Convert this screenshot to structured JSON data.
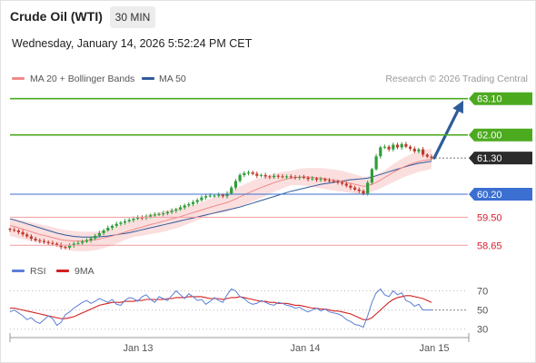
{
  "header": {
    "title": "Crude Oil (WTI)",
    "timeframe": "30 MIN",
    "datetime": "Wednesday, January 14, 2026 5:52:24 PM CET"
  },
  "legend": {
    "items": [
      {
        "label": "MA 20 + Bollinger Bands",
        "color": "#f08a8a"
      },
      {
        "label": "MA 50",
        "color": "#2f5b9a"
      }
    ],
    "credit": "Research © 2026 Trading Central"
  },
  "rsi_legend": {
    "items": [
      {
        "label": "RSI",
        "color": "#5b7fd6"
      },
      {
        "label": "9MA",
        "color": "#d42020"
      }
    ]
  },
  "levels": [
    {
      "value": 63.1,
      "label": "63.10",
      "style": "green-badge"
    },
    {
      "value": 62.0,
      "label": "62.00",
      "style": "green-badge"
    },
    {
      "value": 61.3,
      "label": "61.30",
      "style": "current-badge"
    },
    {
      "value": 60.2,
      "label": "60.20",
      "style": "blue-badge"
    },
    {
      "value": 59.5,
      "label": "59.50",
      "style": "red-text"
    },
    {
      "value": 58.65,
      "label": "58.65",
      "style": "red-text"
    }
  ],
  "x_axis": {
    "labels": [
      "Jan 13",
      "Jan 14",
      "Jan 15"
    ]
  },
  "rsi_axis": {
    "labels": [
      "70",
      "50",
      "30"
    ]
  },
  "chart_data": {
    "type": "line",
    "main_series": [
      {
        "name": "Price (30 min close)",
        "values": [
          59.12,
          59.1,
          59.05,
          58.98,
          58.92,
          58.85,
          58.8,
          58.78,
          58.75,
          58.72,
          58.7,
          58.66,
          58.6,
          58.58,
          58.64,
          58.7,
          58.72,
          58.76,
          58.8,
          58.86,
          58.94,
          59.02,
          59.1,
          59.18,
          59.24,
          59.3,
          59.34,
          59.38,
          59.42,
          59.46,
          59.5,
          59.48,
          59.52,
          59.56,
          59.58,
          59.6,
          59.62,
          59.66,
          59.7,
          59.74,
          59.8,
          59.86,
          59.9,
          59.96,
          60.02,
          60.1,
          60.14,
          60.16,
          60.16,
          60.18,
          60.14,
          60.22,
          60.4,
          60.6,
          60.78,
          60.84,
          60.86,
          60.82,
          60.76,
          60.78,
          60.74,
          60.72,
          60.76,
          60.74,
          60.72,
          60.74,
          60.72,
          60.7,
          60.72,
          60.7,
          60.66,
          60.68,
          60.64,
          60.66,
          60.62,
          60.6,
          60.58,
          60.56,
          60.52,
          60.46,
          60.4,
          60.34,
          60.3,
          60.22,
          60.55,
          60.96,
          61.35,
          61.62,
          61.64,
          61.56,
          61.7,
          61.62,
          61.72,
          61.64,
          61.58,
          61.5,
          61.56,
          61.4,
          61.34,
          61.3
        ]
      },
      {
        "name": "MA 20",
        "values": [
          59.25,
          59.22,
          59.18,
          59.14,
          59.1,
          59.06,
          59.02,
          58.98,
          58.95,
          58.92,
          58.88,
          58.85,
          58.82,
          58.8,
          58.79,
          58.78,
          58.78,
          58.78,
          58.79,
          58.8,
          58.82,
          58.84,
          58.87,
          58.9,
          58.93,
          58.97,
          59.01,
          59.05,
          59.09,
          59.13,
          59.17,
          59.2,
          59.24,
          59.28,
          59.31,
          59.34,
          59.38,
          59.41,
          59.45,
          59.48,
          59.52,
          59.56,
          59.6,
          59.64,
          59.68,
          59.72,
          59.76,
          59.8,
          59.84,
          59.88,
          59.91,
          59.95,
          60.0,
          60.06,
          60.12,
          60.18,
          60.24,
          60.3,
          60.35,
          60.4,
          60.45,
          60.5,
          60.55,
          60.59,
          60.63,
          60.66,
          60.69,
          60.71,
          60.72,
          60.73,
          60.72,
          60.71,
          60.7,
          60.69,
          60.67,
          60.65,
          60.63,
          60.61,
          60.59,
          60.56,
          60.53,
          60.5,
          60.47,
          60.44,
          60.46,
          60.5,
          60.56,
          60.63,
          60.71,
          60.78,
          60.86,
          60.93,
          61.0,
          61.06,
          61.11,
          61.15,
          61.19,
          61.22,
          61.24,
          61.26
        ]
      },
      {
        "name": "MA 50",
        "values": [
          59.45,
          59.42,
          59.38,
          59.34,
          59.3,
          59.26,
          59.22,
          59.18,
          59.14,
          59.1,
          59.06,
          59.02,
          58.99,
          58.96,
          58.94,
          58.92,
          58.91,
          58.9,
          58.9,
          58.9,
          58.9,
          58.91,
          58.92,
          58.93,
          58.95,
          58.97,
          58.99,
          59.01,
          59.03,
          59.06,
          59.09,
          59.12,
          59.15,
          59.18,
          59.21,
          59.24,
          59.27,
          59.3,
          59.33,
          59.36,
          59.39,
          59.42,
          59.45,
          59.48,
          59.51,
          59.54,
          59.57,
          59.6,
          59.63,
          59.66,
          59.69,
          59.72,
          59.75,
          59.78,
          59.81,
          59.85,
          59.89,
          59.93,
          59.97,
          60.01,
          60.05,
          60.09,
          60.13,
          60.17,
          60.21,
          60.25,
          60.29,
          60.32,
          60.35,
          60.38,
          60.41,
          60.44,
          60.47,
          60.5,
          60.52,
          60.54,
          60.56,
          60.58,
          60.6,
          60.62,
          60.64,
          60.65,
          60.66,
          60.67,
          60.69,
          60.72,
          60.76,
          60.8,
          60.84,
          60.88,
          60.92,
          60.96,
          61.0,
          61.04,
          61.08,
          61.11,
          61.14,
          61.16,
          61.18,
          61.2
        ]
      }
    ],
    "rsi_series": [
      {
        "name": "RSI",
        "values": [
          48,
          50,
          47,
          44,
          40,
          42,
          38,
          36,
          40,
          44,
          41,
          34,
          37,
          45,
          48,
          52,
          55,
          58,
          60,
          57,
          59,
          62,
          60,
          58,
          61,
          56,
          55,
          60,
          63,
          62,
          59,
          64,
          66,
          61,
          58,
          64,
          62,
          60,
          65,
          70,
          66,
          62,
          67,
          64,
          60,
          61,
          56,
          59,
          63,
          60,
          58,
          66,
          72,
          70,
          64,
          62,
          58,
          56,
          57,
          60,
          58,
          56,
          55,
          58,
          57,
          55,
          54,
          52,
          53,
          50,
          48,
          50,
          52,
          49,
          51,
          48,
          47,
          46,
          44,
          40,
          38,
          35,
          34,
          32,
          44,
          58,
          68,
          72,
          66,
          64,
          70,
          66,
          68,
          60,
          58,
          54,
          56,
          50,
          50,
          50
        ]
      },
      {
        "name": "9MA",
        "values": [
          52,
          52,
          51,
          50,
          49,
          48,
          47,
          46,
          45,
          44,
          43,
          42,
          41,
          41,
          42,
          43,
          45,
          47,
          49,
          51,
          53,
          55,
          56,
          57,
          58,
          58,
          58,
          59,
          59,
          59,
          60,
          60,
          61,
          61,
          61,
          61,
          61,
          62,
          62,
          63,
          63,
          63,
          64,
          64,
          64,
          64,
          63,
          62,
          62,
          62,
          61,
          62,
          63,
          63,
          64,
          63,
          62,
          61,
          60,
          59,
          59,
          58,
          58,
          57,
          57,
          57,
          56,
          55,
          55,
          54,
          53,
          52,
          52,
          51,
          51,
          50,
          49,
          49,
          48,
          47,
          46,
          44,
          42,
          40,
          40,
          42,
          46,
          50,
          54,
          58,
          61,
          63,
          64,
          65,
          65,
          64,
          63,
          62,
          60,
          58
        ]
      }
    ],
    "ylim": [
      58.3,
      63.45
    ],
    "rsi_ylim": [
      25,
      80
    ],
    "projection": {
      "from": 61.3,
      "to": 63.1
    }
  }
}
